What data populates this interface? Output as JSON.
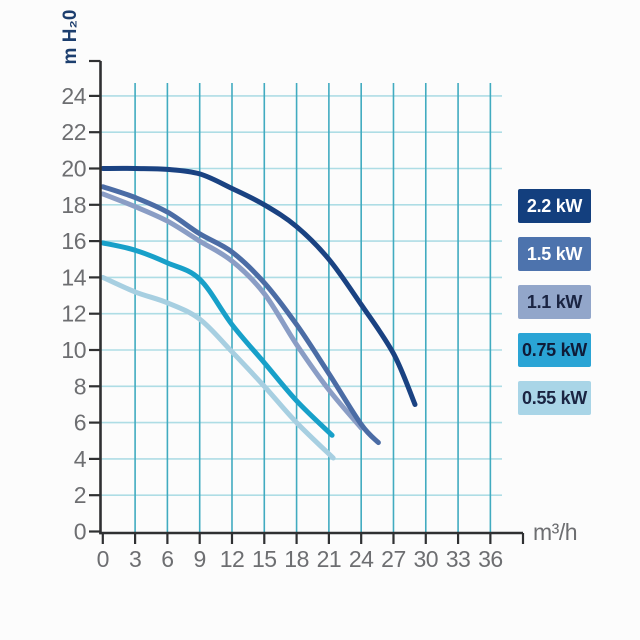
{
  "chart_data": {
    "type": "line",
    "title": "",
    "xlabel": "m³/h",
    "ylabel": "m H₂0",
    "xlim": [
      0,
      36
    ],
    "ylim": [
      0,
      25
    ],
    "x_ticks": [
      0,
      3,
      6,
      9,
      12,
      15,
      18,
      21,
      24,
      27,
      30,
      33,
      36
    ],
    "y_ticks": [
      0,
      2,
      4,
      6,
      8,
      10,
      12,
      14,
      16,
      18,
      20,
      22,
      24
    ],
    "grid": "on",
    "legend_position": "right",
    "series": [
      {
        "name": "2.2 kW",
        "color": "#1a4282",
        "points": [
          [
            0,
            20
          ],
          [
            3,
            20
          ],
          [
            6,
            19.95
          ],
          [
            9,
            19.7
          ],
          [
            12,
            18.9
          ],
          [
            15,
            18.0
          ],
          [
            18,
            16.8
          ],
          [
            21,
            15.0
          ],
          [
            24,
            12.5
          ],
          [
            27,
            9.8
          ],
          [
            29,
            7.0
          ]
        ]
      },
      {
        "name": "1.5 kW",
        "color": "#4b6ca5",
        "points": [
          [
            0,
            19.0
          ],
          [
            3,
            18.4
          ],
          [
            6,
            17.6
          ],
          [
            9,
            16.4
          ],
          [
            12,
            15.4
          ],
          [
            15,
            13.7
          ],
          [
            18,
            11.4
          ],
          [
            21,
            8.7
          ],
          [
            24,
            5.9
          ],
          [
            25.6,
            4.9
          ]
        ]
      },
      {
        "name": "1.1 kW",
        "color": "#8a9dc5",
        "points": [
          [
            0,
            18.6
          ],
          [
            3,
            17.9
          ],
          [
            6,
            17.1
          ],
          [
            9,
            16.0
          ],
          [
            12,
            14.9
          ],
          [
            15,
            13.1
          ],
          [
            18,
            10.3
          ],
          [
            21,
            7.8
          ],
          [
            24,
            5.7
          ]
        ]
      },
      {
        "name": "0.75 kW",
        "color": "#18a0c9",
        "points": [
          [
            0,
            15.9
          ],
          [
            3,
            15.5
          ],
          [
            6,
            14.8
          ],
          [
            9,
            13.9
          ],
          [
            12,
            11.4
          ],
          [
            15,
            9.3
          ],
          [
            18,
            7.2
          ],
          [
            21.3,
            5.3
          ]
        ]
      },
      {
        "name": "0.55 kW",
        "color": "#a7cfe1",
        "points": [
          [
            0,
            14.0
          ],
          [
            3,
            13.2
          ],
          [
            6,
            12.6
          ],
          [
            9,
            11.7
          ],
          [
            12,
            9.9
          ],
          [
            15,
            8.0
          ],
          [
            18,
            6.0
          ],
          [
            21.4,
            4.05
          ]
        ]
      }
    ]
  },
  "legend": {
    "items": [
      {
        "label": "2.2 kW",
        "box_color": "#133f7e",
        "text_color": "#ffffff"
      },
      {
        "label": "1.5 kW",
        "box_color": "#4d73ad",
        "text_color": "#ffffff"
      },
      {
        "label": "1.1 kW",
        "box_color": "#92a6ca",
        "text_color": "#1a2442"
      },
      {
        "label": "0.75 kW",
        "box_color": "#2aa4d5",
        "text_color": "#0f1b38"
      },
      {
        "label": "0.55 kW",
        "box_color": "#a9d5e7",
        "text_color": "#1a2442"
      }
    ]
  },
  "style": {
    "background": "#fcfcfc",
    "axis_color": "#2f3032",
    "tick_label_color": "#6d6e71",
    "grid_vertical_color": "#41abc0",
    "grid_horizontal_color": "#aedde5",
    "x_unit_color": "#6d6e71",
    "y_unit_color": "#1c3e6e"
  }
}
